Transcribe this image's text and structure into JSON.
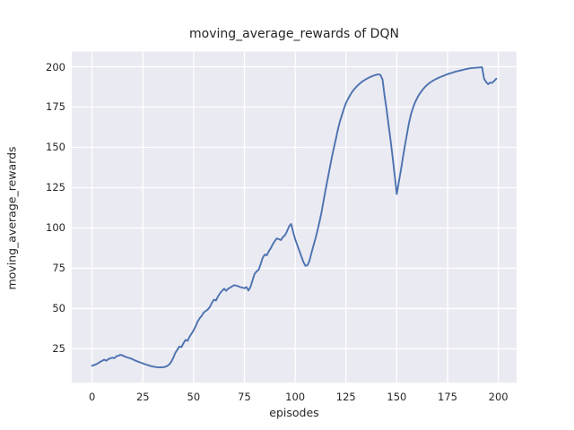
{
  "colors": {
    "line": "#4c72b0",
    "axes_background": "#eaeaf2",
    "grid": "#ffffff",
    "text": "#262626",
    "figure_background": "#ffffff"
  },
  "chart_data": {
    "type": "line",
    "title": "moving_average_rewards of DQN",
    "xlabel": "episodes",
    "ylabel": "moving_average_rewards",
    "x_ticks": [
      0,
      25,
      50,
      75,
      100,
      125,
      150,
      175,
      200
    ],
    "y_ticks": [
      25,
      50,
      75,
      100,
      125,
      150,
      175,
      200
    ],
    "xlim": [
      -10,
      209
    ],
    "ylim": [
      4,
      209.4
    ],
    "grid": true,
    "legend": "none",
    "series": [
      {
        "name": "moving_average_rewards",
        "x_range": [
          0,
          199
        ],
        "x_step": 1,
        "values": [
          14.5,
          15,
          15.4,
          16.1,
          17,
          17.6,
          18.3,
          17.6,
          18.6,
          19.1,
          19.5,
          19.2,
          20.4,
          20.8,
          21.3,
          20.9,
          20.3,
          19.8,
          19.4,
          19.1,
          18.5,
          17.9,
          17.4,
          16.9,
          16.4,
          16,
          15.5,
          15.1,
          14.7,
          14.3,
          14,
          13.8,
          13.6,
          13.5,
          13.5,
          13.6,
          13.9,
          14.4,
          15.3,
          17,
          19.5,
          22.5,
          24.5,
          26.5,
          26,
          28.5,
          30.5,
          30,
          32.5,
          34.5,
          36.5,
          39,
          42,
          44,
          45.5,
          47.5,
          48.5,
          49.5,
          51,
          53.5,
          55.5,
          55,
          57.5,
          59.5,
          61,
          62.3,
          61,
          62.3,
          63,
          63.8,
          64.5,
          64.2,
          63.8,
          63.3,
          63,
          62.6,
          63.3,
          61.2,
          63.5,
          67.5,
          71.5,
          73,
          74,
          77.5,
          81.5,
          83.5,
          83,
          85.5,
          87.5,
          90,
          92,
          93.5,
          93,
          92.5,
          94.5,
          95.5,
          98,
          101,
          102.5,
          97.5,
          93,
          89.5,
          86,
          82.5,
          79,
          76.5,
          76.8,
          79.5,
          84.5,
          89,
          93.5,
          98.5,
          104,
          110,
          117,
          124,
          130.5,
          137,
          143.5,
          149.5,
          155,
          161,
          166,
          170,
          174,
          177.5,
          180,
          182.3,
          184.3,
          186,
          187.4,
          188.7,
          189.8,
          190.8,
          191.6,
          192.4,
          193.1,
          193.7,
          194.2,
          194.7,
          195,
          195.3,
          194.9,
          192,
          182,
          173.5,
          163.5,
          154,
          143.5,
          132.5,
          121,
          128.5,
          135.5,
          143.5,
          151,
          158,
          165,
          170.5,
          174.5,
          177.8,
          180.5,
          182.7,
          184.5,
          186.2,
          187.6,
          188.8,
          189.8,
          190.7,
          191.5,
          192.2,
          192.8,
          193.4,
          193.9,
          194.4,
          194.9,
          195.4,
          195.8,
          196.2,
          196.6,
          197,
          197.3,
          197.6,
          197.9,
          198.2,
          198.5,
          198.8,
          199,
          199.2,
          199.3,
          199.4,
          199.5,
          199.6,
          199.7,
          192.5,
          190.5,
          189.2,
          190.2,
          190,
          191.3,
          192.6
        ]
      }
    ]
  }
}
